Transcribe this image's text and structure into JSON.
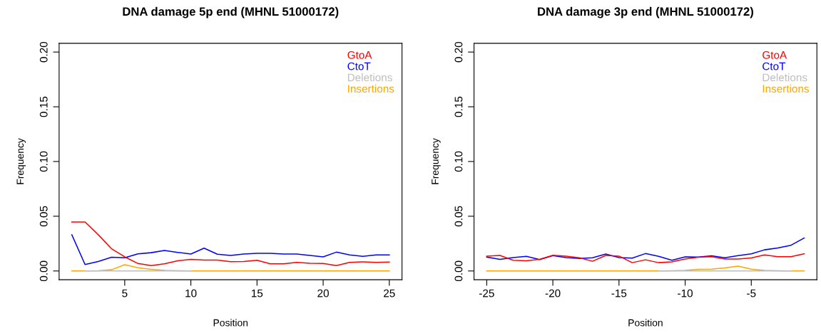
{
  "chart_data": [
    {
      "type": "line",
      "title": "DNA damage 5p end (MHNL 51000172)",
      "xlabel": "Position",
      "ylabel": "Frequency",
      "x": [
        1,
        2,
        3,
        4,
        5,
        6,
        7,
        8,
        9,
        10,
        11,
        12,
        13,
        14,
        15,
        16,
        17,
        18,
        19,
        20,
        21,
        22,
        23,
        24,
        25
      ],
      "series": [
        {
          "name": "GtoA",
          "color": "#ff0000",
          "values": [
            0.0447,
            0.0447,
            0.0331,
            0.0203,
            0.0129,
            0.0068,
            0.0049,
            0.0066,
            0.0093,
            0.0106,
            0.01,
            0.01,
            0.0085,
            0.0087,
            0.0098,
            0.0066,
            0.0066,
            0.0078,
            0.007,
            0.0068,
            0.0049,
            0.0078,
            0.0083,
            0.0078,
            0.0081
          ]
        },
        {
          "name": "CtoT",
          "color": "#0000ff",
          "values": [
            0.0331,
            0.0059,
            0.0087,
            0.0125,
            0.0121,
            0.0157,
            0.0167,
            0.0187,
            0.017,
            0.0155,
            0.0208,
            0.0153,
            0.0142,
            0.0155,
            0.0161,
            0.0161,
            0.0155,
            0.0155,
            0.0142,
            0.0129,
            0.0172,
            0.0146,
            0.0134,
            0.0146,
            0.0146
          ]
        },
        {
          "name": "Deletions",
          "color": "#bebebe",
          "values": [
            null,
            0,
            0,
            0,
            0,
            0,
            0,
            0,
            0,
            0,
            null,
            null,
            null,
            null,
            null,
            null,
            null,
            null,
            null,
            null,
            null,
            null,
            null,
            null,
            null
          ]
        },
        {
          "name": "Insertions",
          "color": "#ffa500",
          "values": [
            0,
            0,
            0.0002,
            0.0011,
            0.0057,
            0.003,
            0.0015,
            0.0006,
            0.0002,
            0,
            0,
            0,
            0,
            0,
            0,
            0,
            0,
            0,
            0,
            0,
            0,
            0,
            0,
            0,
            0
          ]
        }
      ],
      "xlim": [
        0.04,
        25.96
      ],
      "xticks": [
        5,
        10,
        15,
        20,
        25
      ],
      "ylim": [
        -0.008,
        0.208
      ],
      "yticks": [
        {
          "value": 0,
          "label": "0.00"
        },
        {
          "value": 0.05,
          "label": "0.05"
        },
        {
          "value": 0.1,
          "label": "0.10"
        },
        {
          "value": 0.15,
          "label": "0.15"
        },
        {
          "value": 0.2,
          "label": "0.20"
        }
      ],
      "legend": "top right",
      "grid": false,
      "marker": "none",
      "line_style": "solid"
    },
    {
      "type": "line",
      "title": "DNA damage 3p end (MHNL 51000172)",
      "xlabel": "Position",
      "ylabel": "Frequency",
      "x": [
        -25,
        -24,
        -23,
        -22,
        -21,
        -20,
        -19,
        -18,
        -17,
        -16,
        -15,
        -14,
        -13,
        -12,
        -11,
        -10,
        -9,
        -8,
        -7,
        -6,
        -5,
        -4,
        -3,
        -2,
        -1
      ],
      "series": [
        {
          "name": "GtoA",
          "color": "#ff0000",
          "values": [
            0.0136,
            0.0142,
            0.0098,
            0.0093,
            0.0106,
            0.0144,
            0.0136,
            0.0121,
            0.0089,
            0.0142,
            0.0136,
            0.0076,
            0.0102,
            0.0076,
            0.0083,
            0.011,
            0.0125,
            0.0131,
            0.011,
            0.011,
            0.0119,
            0.0146,
            0.0131,
            0.0131,
            0.0157
          ]
        },
        {
          "name": "CtoT",
          "color": "#0000ff",
          "values": [
            0.0127,
            0.0106,
            0.0123,
            0.0134,
            0.0104,
            0.014,
            0.0123,
            0.0114,
            0.0121,
            0.0155,
            0.0123,
            0.0117,
            0.0159,
            0.0134,
            0.0098,
            0.0129,
            0.0127,
            0.0138,
            0.0121,
            0.014,
            0.0157,
            0.0193,
            0.021,
            0.0235,
            0.0301
          ]
        },
        {
          "name": "Deletions",
          "color": "#bebebe",
          "values": [
            null,
            null,
            null,
            null,
            null,
            null,
            null,
            null,
            null,
            null,
            null,
            null,
            null,
            0,
            0,
            0,
            0,
            0,
            0,
            0,
            0,
            0,
            0,
            0,
            null
          ]
        },
        {
          "name": "Insertions",
          "color": "#ffa500",
          "values": [
            0,
            0,
            0,
            0,
            0,
            0,
            0,
            0,
            0,
            0,
            0,
            0,
            0,
            0,
            0.0002,
            0.0006,
            0.0015,
            0.0017,
            0.0028,
            0.0045,
            0.0017,
            0.0006,
            0.0002,
            0,
            0
          ]
        }
      ],
      "xlim": [
        -25.96,
        -0.04
      ],
      "xticks": [
        -25,
        -20,
        -15,
        -10,
        -5
      ],
      "ylim": [
        -0.008,
        0.208
      ],
      "yticks": [
        {
          "value": 0,
          "label": "0.00"
        },
        {
          "value": 0.05,
          "label": "0.05"
        },
        {
          "value": 0.1,
          "label": "0.10"
        },
        {
          "value": 0.15,
          "label": "0.15"
        },
        {
          "value": 0.2,
          "label": "0.20"
        }
      ],
      "legend": "top right",
      "grid": false,
      "marker": "none",
      "line_style": "solid"
    }
  ]
}
